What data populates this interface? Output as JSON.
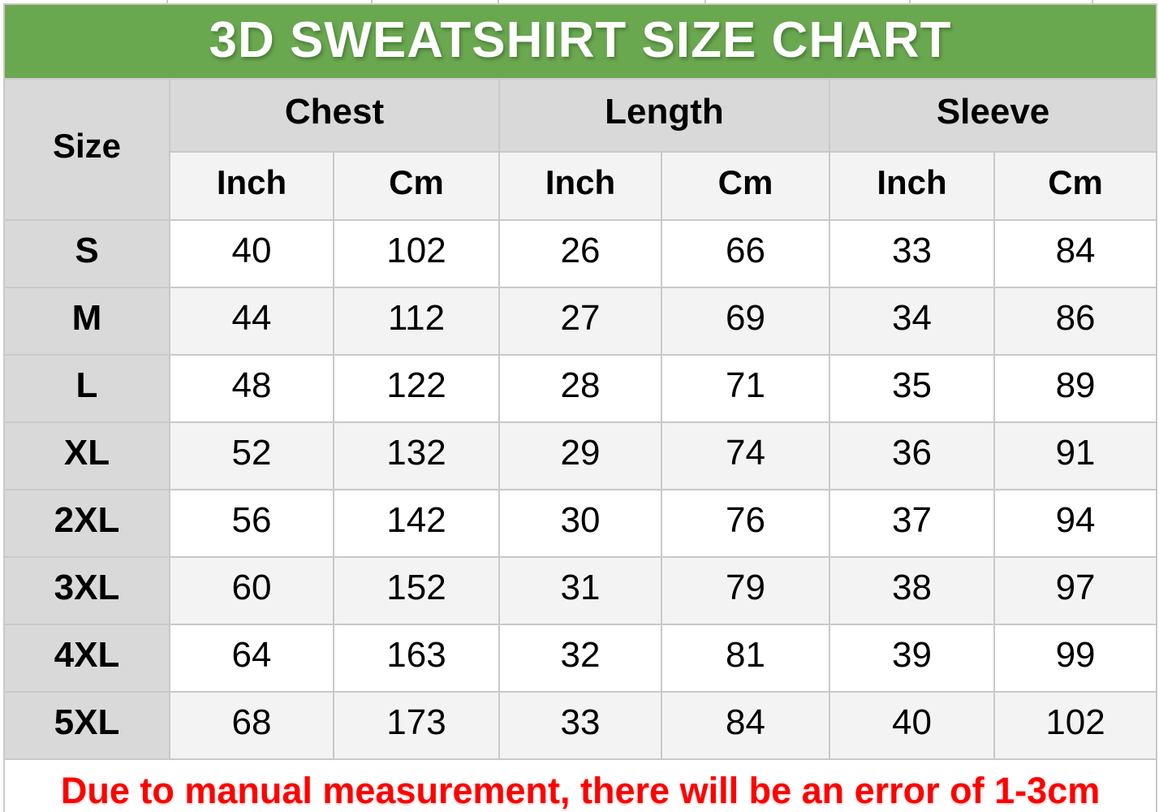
{
  "title": "3D SWEATSHIRT SIZE CHART",
  "note": "Due to manual measurement, there will be an error of 1-3cm",
  "colors": {
    "header_green": "#6aa84f",
    "title_text": "#ffffff",
    "group_header_gray": "#d9d9d9",
    "subheader_gray": "#f3f3f3",
    "alt_row_gray": "#f3f3f3",
    "note_red": "#ff0000",
    "border_gray": "#c9c9c9",
    "text_black": "#000000"
  },
  "table": {
    "size_label": "Size",
    "groups": [
      {
        "label": "Chest"
      },
      {
        "label": "Length"
      },
      {
        "label": "Sleeve"
      }
    ],
    "unit_labels": [
      "Inch",
      "Cm",
      "Inch",
      "Cm",
      "Inch",
      "Cm"
    ],
    "rows": [
      {
        "size": "S",
        "values": [
          40,
          102,
          26,
          66,
          33,
          84
        ]
      },
      {
        "size": "M",
        "values": [
          44,
          112,
          27,
          69,
          34,
          86
        ]
      },
      {
        "size": "L",
        "values": [
          48,
          122,
          28,
          71,
          35,
          89
        ]
      },
      {
        "size": "XL",
        "values": [
          52,
          132,
          29,
          74,
          36,
          91
        ]
      },
      {
        "size": "2XL",
        "values": [
          56,
          142,
          30,
          76,
          37,
          94
        ]
      },
      {
        "size": "3XL",
        "values": [
          60,
          152,
          31,
          79,
          38,
          97
        ]
      },
      {
        "size": "4XL",
        "values": [
          64,
          163,
          32,
          81,
          39,
          99
        ]
      },
      {
        "size": "5XL",
        "values": [
          68,
          173,
          33,
          84,
          40,
          102
        ]
      }
    ]
  },
  "chart_data": {
    "type": "table",
    "title": "3D SWEATSHIRT SIZE CHART",
    "columns": [
      "Size",
      "Chest Inch",
      "Chest Cm",
      "Length Inch",
      "Length Cm",
      "Sleeve Inch",
      "Sleeve Cm"
    ],
    "rows": [
      [
        "S",
        40,
        102,
        26,
        66,
        33,
        84
      ],
      [
        "M",
        44,
        112,
        27,
        69,
        34,
        86
      ],
      [
        "L",
        48,
        122,
        28,
        71,
        35,
        89
      ],
      [
        "XL",
        52,
        132,
        29,
        74,
        36,
        91
      ],
      [
        "2XL",
        56,
        142,
        30,
        76,
        37,
        94
      ],
      [
        "3XL",
        60,
        152,
        31,
        79,
        38,
        97
      ],
      [
        "4XL",
        64,
        163,
        32,
        81,
        39,
        99
      ],
      [
        "5XL",
        68,
        173,
        33,
        84,
        40,
        102
      ]
    ],
    "annotations": [
      "Due to manual measurement, there will be an error of 1-3cm"
    ]
  }
}
